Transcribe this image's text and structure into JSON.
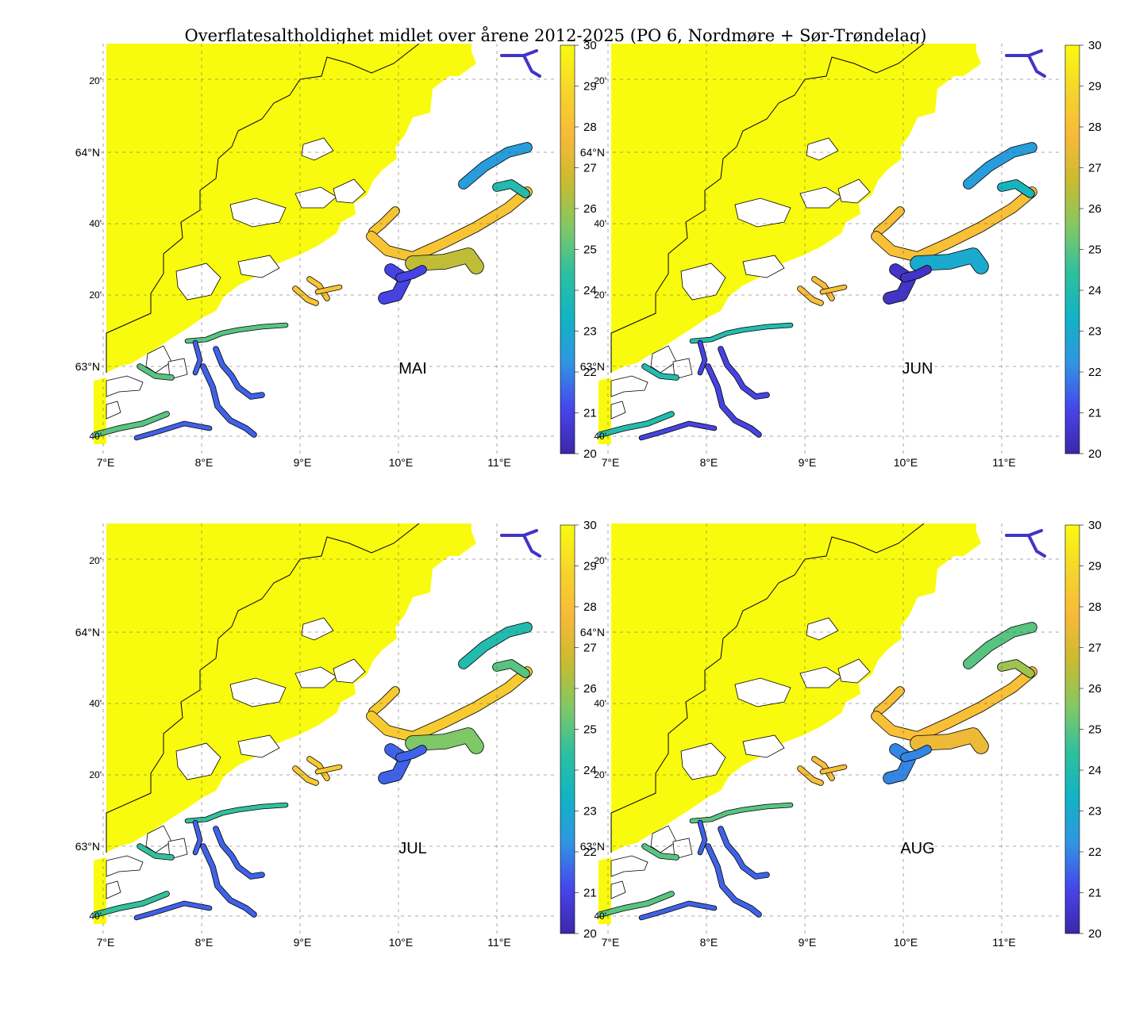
{
  "figure": {
    "title": "Overflatesaltholdighet midlet over årene 2012-2025 (PO 6, Nordmøre + Sør-Trøndelag)"
  },
  "colors": {
    "ocean": "#f9fb0e",
    "land": "#ffffff",
    "coast_line": "#000000",
    "colormap": [
      "#3e26a8",
      "#4746eb",
      "#2f96e2",
      "#12b3c4",
      "#2ec09e",
      "#82c864",
      "#cabb30",
      "#f8b93a",
      "#f6d52b",
      "#f9fb0e"
    ]
  },
  "axes": {
    "lon_ticks": [
      "7°E",
      "8°E",
      "9°E",
      "10°E",
      "11°E"
    ],
    "lat_ticks_major": [
      "64°N",
      "63°N"
    ],
    "lat_ticks_minor": [
      "20'",
      "40'",
      "20'",
      "40'"
    ]
  },
  "colorbar": {
    "min": 20,
    "max": 30,
    "tick_labels": [
      "30",
      "29",
      "28",
      "27",
      "26",
      "25",
      "24",
      "23",
      "22",
      "21",
      "20"
    ]
  },
  "panels": [
    {
      "id": "mai",
      "month_label": "MAI",
      "salinity": {
        "moldefjord_NE": 22.5,
        "trondheimsfjord_outer": 28.2,
        "trondheimsfjord_inner": 21.0,
        "trondheimsfjord_SE": 26.5,
        "beitstadfjord": 24.0,
        "sunndal_region": 21.5,
        "romsdal_south": 25.0
      }
    },
    {
      "id": "jun",
      "month_label": "JUN",
      "salinity": {
        "moldefjord_NE": 22.5,
        "trondheimsfjord_outer": 28.0,
        "trondheimsfjord_inner": 20.5,
        "trondheimsfjord_SE": 23.0,
        "beitstadfjord": 23.5,
        "sunndal_region": 21.0,
        "romsdal_south": 24.0
      }
    },
    {
      "id": "jul",
      "month_label": "JUL",
      "salinity": {
        "moldefjord_NE": 24.0,
        "trondheimsfjord_outer": 28.5,
        "trondheimsfjord_inner": 21.5,
        "trondheimsfjord_SE": 25.5,
        "beitstadfjord": 25.0,
        "sunndal_region": 21.5,
        "romsdal_south": 24.5
      }
    },
    {
      "id": "aug",
      "month_label": "AUG",
      "salinity": {
        "moldefjord_NE": 25.0,
        "trondheimsfjord_outer": 28.0,
        "trondheimsfjord_inner": 22.0,
        "trondheimsfjord_SE": 27.5,
        "beitstadfjord": 26.0,
        "sunndal_region": 21.5,
        "romsdal_south": 25.0
      }
    }
  ]
}
